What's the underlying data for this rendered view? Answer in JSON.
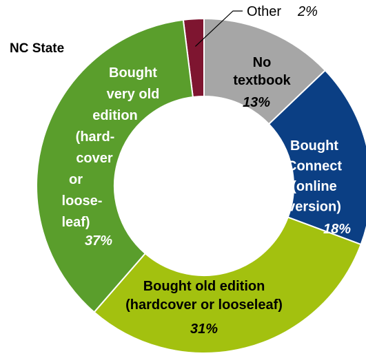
{
  "chart_data": {
    "type": "pie",
    "subtype": "donut",
    "title": "NC State",
    "slices": [
      {
        "label_lines": [
          "No",
          "textbook"
        ],
        "label": "No textbook",
        "value": 13,
        "value_label": "13%",
        "color": "#a6a6a6",
        "text_color": "#000000",
        "pct_color": "#000000"
      },
      {
        "label_lines": [
          "Bought",
          "Connect",
          "(online",
          "version)"
        ],
        "label": "Bought Connect (online version)",
        "value": 18,
        "value_label": "18%",
        "color": "#0b3f84",
        "text_color": "#ffffff",
        "pct_color": "#ffffff"
      },
      {
        "label_lines": [
          "Bought old edition",
          "(hardcover or looseleaf)"
        ],
        "label": "Bought old edition (hardcover or looseleaf)",
        "value": 31,
        "value_label": "31%",
        "color": "#a3c10f",
        "text_color": "#000000",
        "pct_color": "#000000"
      },
      {
        "label_lines": [
          "Bought",
          "very old",
          "edition",
          "(hard-",
          "cover",
          "or",
          "loose-",
          "leaf)"
        ],
        "label": "Bought very old edition (hard-cover or loose-leaf)",
        "value": 37,
        "value_label": "37%",
        "color": "#5a9e2c",
        "text_color": "#ffffff",
        "pct_color": "#ffffff"
      },
      {
        "label_lines": [
          "Other"
        ],
        "label": "Other",
        "value": 2,
        "value_label": "2%",
        "color": "#7e1530",
        "text_color": "#000000",
        "pct_color": "#000000"
      }
    ],
    "start_angle_deg": 0,
    "direction": "clockwise",
    "legend": "none"
  }
}
